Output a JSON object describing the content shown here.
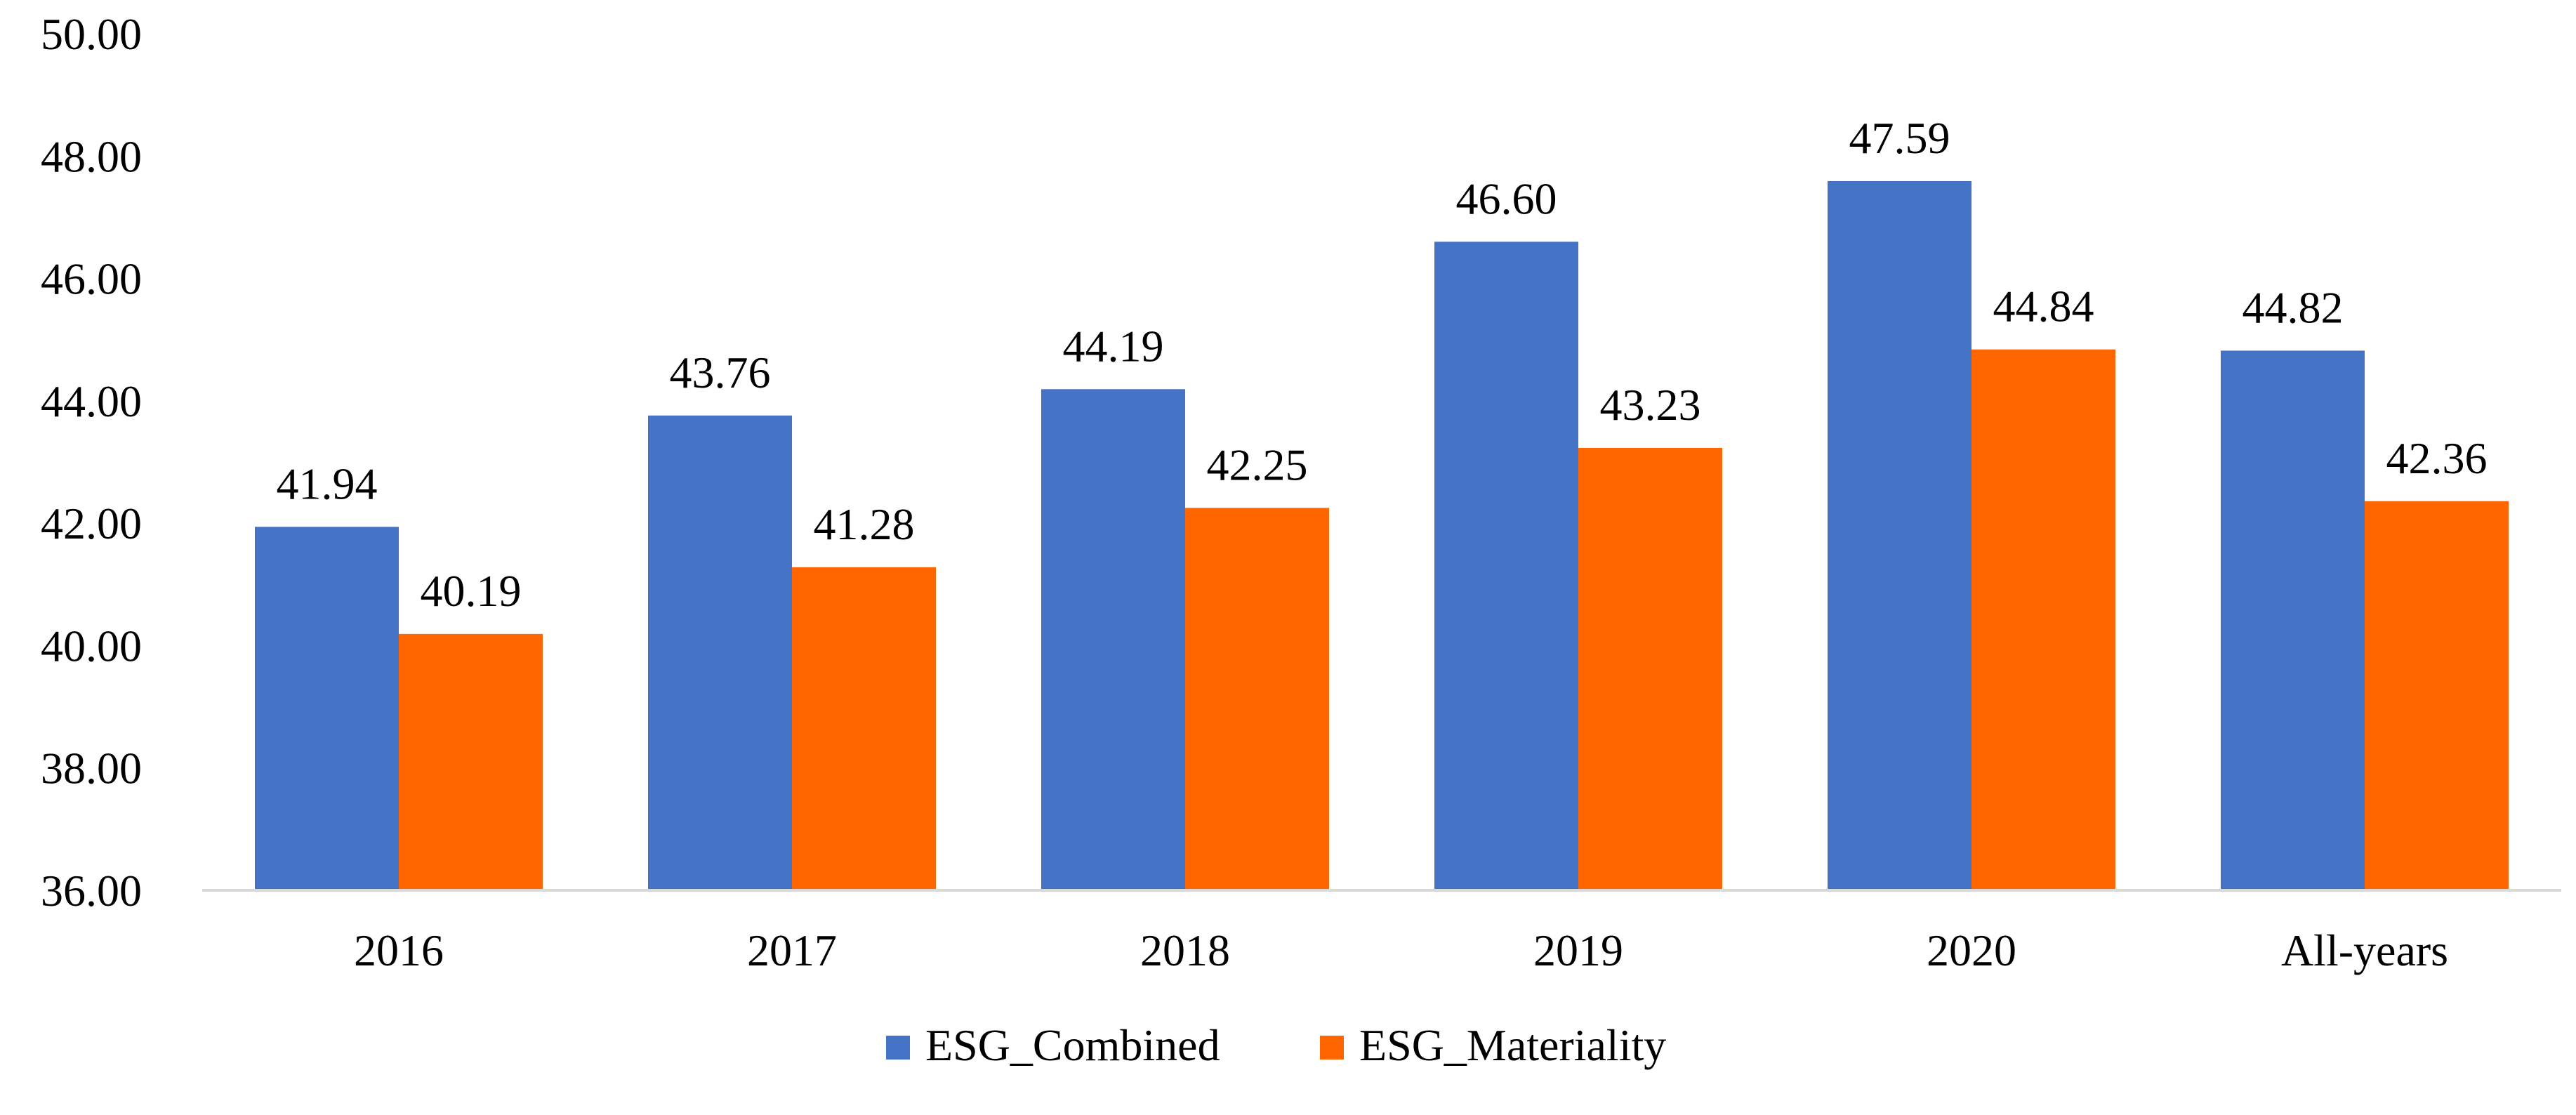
{
  "chart_data": {
    "type": "bar",
    "title": "",
    "xlabel": "",
    "ylabel": "",
    "categories": [
      "2016",
      "2017",
      "2018",
      "2019",
      "2020",
      "All-years"
    ],
    "series": [
      {
        "name": "ESG_Combined",
        "color": "#4472c4",
        "values": [
          41.94,
          43.76,
          44.19,
          46.6,
          47.59,
          44.82
        ],
        "labels": [
          "41.94",
          "43.76",
          "44.19",
          "46.60",
          "47.59",
          "44.82"
        ]
      },
      {
        "name": "ESG_Materiality",
        "color": "#ff6600",
        "values": [
          40.19,
          41.28,
          42.25,
          43.23,
          44.84,
          42.36
        ],
        "labels": [
          "40.19",
          "41.28",
          "42.25",
          "43.23",
          "44.84",
          "42.36"
        ]
      }
    ],
    "ylim": [
      36,
      50
    ],
    "yticks": [
      36,
      38,
      40,
      42,
      44,
      46,
      48,
      50
    ],
    "ytick_labels": [
      "36.00",
      "38.00",
      "40.00",
      "42.00",
      "44.00",
      "46.00",
      "48.00",
      "50.00"
    ],
    "grid": false,
    "legend_position": "bottom-center",
    "axis_line_color": "#d9d9d9"
  }
}
